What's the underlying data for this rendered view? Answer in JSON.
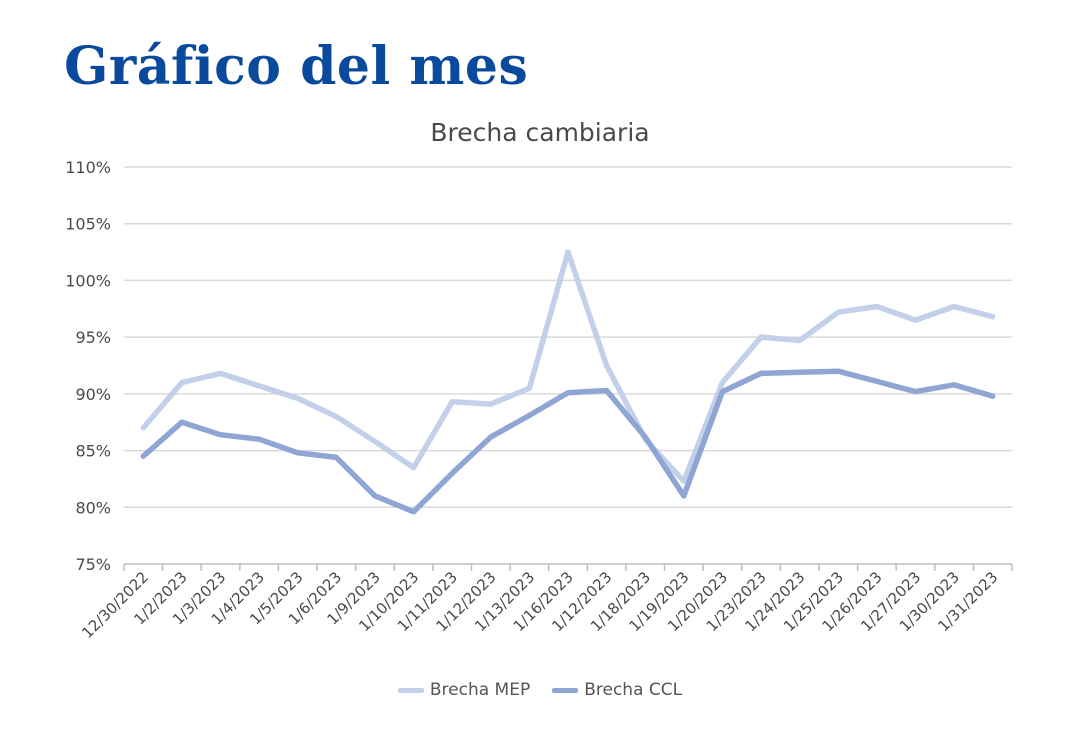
{
  "heading": "Gráfico del mes",
  "chart_data": {
    "type": "line",
    "title": "Brecha cambiaria",
    "xlabel": "",
    "ylabel": "",
    "categories": [
      "12/30/2022",
      "1/2/2023",
      "1/3/2023",
      "1/4/2023",
      "1/5/2023",
      "1/6/2023",
      "1/9/2023",
      "1/10/2023",
      "1/11/2023",
      "1/12/2023",
      "1/13/2023",
      "1/16/2023",
      "1/12/2023",
      "1/18/2023",
      "1/19/2023",
      "1/20/2023",
      "1/23/2023",
      "1/24/2023",
      "1/25/2023",
      "1/26/2023",
      "1/27/2023",
      "1/30/2023",
      "1/31/2023"
    ],
    "y_ticks": [
      "75%",
      "80%",
      "85%",
      "90%",
      "95%",
      "100%",
      "105%",
      "110%"
    ],
    "ylim": [
      75,
      110
    ],
    "grid": true,
    "legend_position": "bottom",
    "series": [
      {
        "name": "Brecha MEP",
        "color": "#c3d0e9",
        "values": [
          87.0,
          91.0,
          91.8,
          90.7,
          89.6,
          88.0,
          85.8,
          83.5,
          89.3,
          89.1,
          90.5,
          102.5,
          92.5,
          86.0,
          82.3,
          91.0,
          95.0,
          94.7,
          97.2,
          97.7,
          96.5,
          97.7,
          96.8
        ]
      },
      {
        "name": "Brecha  CCL",
        "color": "#8fa5d3",
        "values": [
          84.5,
          87.5,
          86.4,
          86.0,
          84.8,
          84.4,
          81.0,
          79.6,
          83.0,
          86.2,
          88.1,
          90.1,
          90.3,
          86.2,
          81.0,
          90.2,
          91.8,
          91.9,
          92.0,
          91.1,
          90.2,
          90.8,
          89.8
        ]
      }
    ]
  }
}
